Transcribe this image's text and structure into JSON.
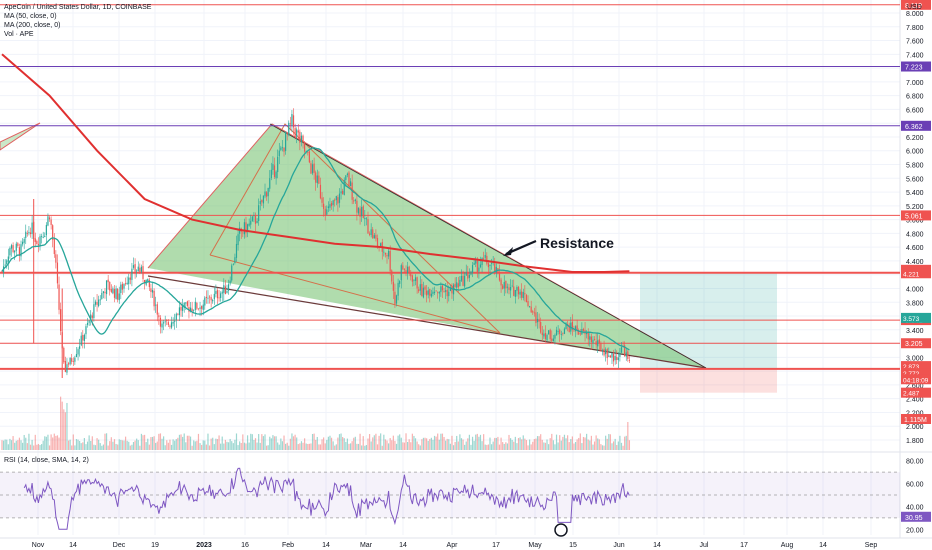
{
  "header": {
    "symbol_line": "ApeCoin / United States Dollar, 1D, COINBASE",
    "ma50_line": "MA (50, close, 0)",
    "ma200_line": "MA (200, close, 0)",
    "vol_line": "Vol · APE",
    "rsi_line": "RSI (14, close, SMA, 14, 2)",
    "currency": "USD"
  },
  "annotation": {
    "text": "Resistance"
  },
  "colors": {
    "up": "#26a69a",
    "down": "#ef5350",
    "ma50": "#26a69a",
    "ma200": "#e03030",
    "purple": "#6a3fb5",
    "pattern_fill": "#7cc576",
    "rsi": "#7e57c2"
  },
  "chart_data": {
    "type": "candlestick",
    "price_axis": {
      "ticks": [
        "8.000",
        "7.800",
        "7.600",
        "7.400",
        "7.200",
        "7.000",
        "6.800",
        "6.600",
        "6.400",
        "6.200",
        "6.000",
        "5.800",
        "5.600",
        "5.400",
        "5.200",
        "5.000",
        "4.800",
        "4.600",
        "4.400",
        "4.200",
        "4.000",
        "3.800",
        "3.600",
        "3.400",
        "3.200",
        "3.000",
        "2.800",
        "2.600",
        "2.400",
        "2.200",
        "2.000",
        "1.800"
      ],
      "range": [
        1.7,
        8.4
      ]
    },
    "x_axis": {
      "ticks": [
        "Nov",
        "14",
        "Dec",
        "19",
        "2023",
        "16",
        "Feb",
        "14",
        "Mar",
        "14",
        "Apr",
        "17",
        "May",
        "15",
        "Jun",
        "14",
        "Jul",
        "17",
        "Aug",
        "14",
        "Sep"
      ]
    },
    "horizontal_levels": [
      {
        "value": 8.119,
        "color": "#ef5350",
        "tag": "8.119"
      },
      {
        "value": 7.223,
        "color": "#6a3fb5",
        "tag": "7.223"
      },
      {
        "value": 6.362,
        "color": "#6a3fb5",
        "tag": "6.362"
      },
      {
        "value": 5.061,
        "color": "#ef5350",
        "tag": "5.061"
      },
      {
        "value": 4.228,
        "color": "#ef5350",
        "tag": "4.228"
      },
      {
        "value": 3.541,
        "color": "#ef5350",
        "tag": "3.541"
      },
      {
        "value": 3.205,
        "color": "#ef5350",
        "tag": "3.205"
      },
      {
        "value": 2.833,
        "color": "#ef5350",
        "tag": "2.833"
      }
    ],
    "price_tags": [
      {
        "value": 4.271,
        "text": "4.271",
        "color": "#ef5350"
      },
      {
        "value": 4.221,
        "text": "4.221",
        "color": "#ef5350"
      },
      {
        "value": 3.573,
        "text": "3.573",
        "color": "#26a69a"
      },
      {
        "value": 2.873,
        "text": "2.873",
        "color": "#ef5350"
      },
      {
        "value": 2.772,
        "text": "2.772",
        "color": "#ef5350"
      },
      {
        "value": 2.682,
        "text": "04:18:09",
        "color": "#ef5350"
      },
      {
        "value": 2.487,
        "text": "2.487",
        "color": "#ef5350"
      }
    ],
    "volume_tag": "1.115M",
    "rsi": {
      "ticks": [
        "80.00",
        "60.00",
        "40.00",
        "20.00"
      ],
      "current": "30.95",
      "upper": 70,
      "lower": 30,
      "range": [
        15,
        85
      ]
    },
    "long_position": {
      "entry": 2.833,
      "target": 4.228,
      "stop": 2.487
    }
  }
}
